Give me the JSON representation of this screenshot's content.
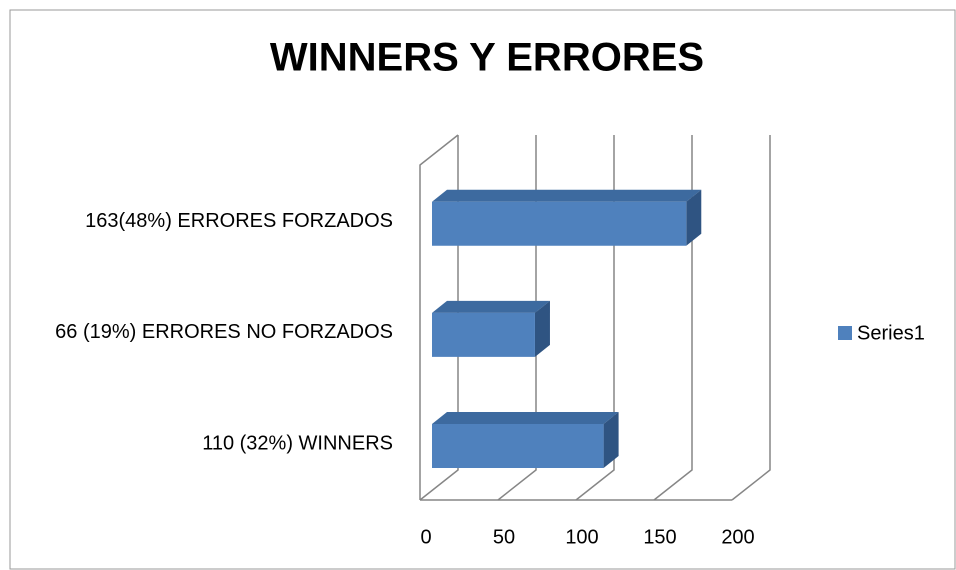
{
  "chart_data": {
    "type": "bar",
    "orientation": "horizontal",
    "title": "WINNERS Y ERRORES",
    "categories": [
      "110 (32%) WINNERS",
      "66 (19%) ERRORES NO FORZADOS",
      "163(48%) ERRORES FORZADOS"
    ],
    "series": [
      {
        "name": "Series1",
        "color": "#4f81bd",
        "values": [
          110,
          66,
          163
        ]
      }
    ],
    "xlim": [
      0,
      200
    ],
    "xticks": [
      0,
      50,
      100,
      150,
      200
    ],
    "grid": true,
    "legend": "right"
  }
}
